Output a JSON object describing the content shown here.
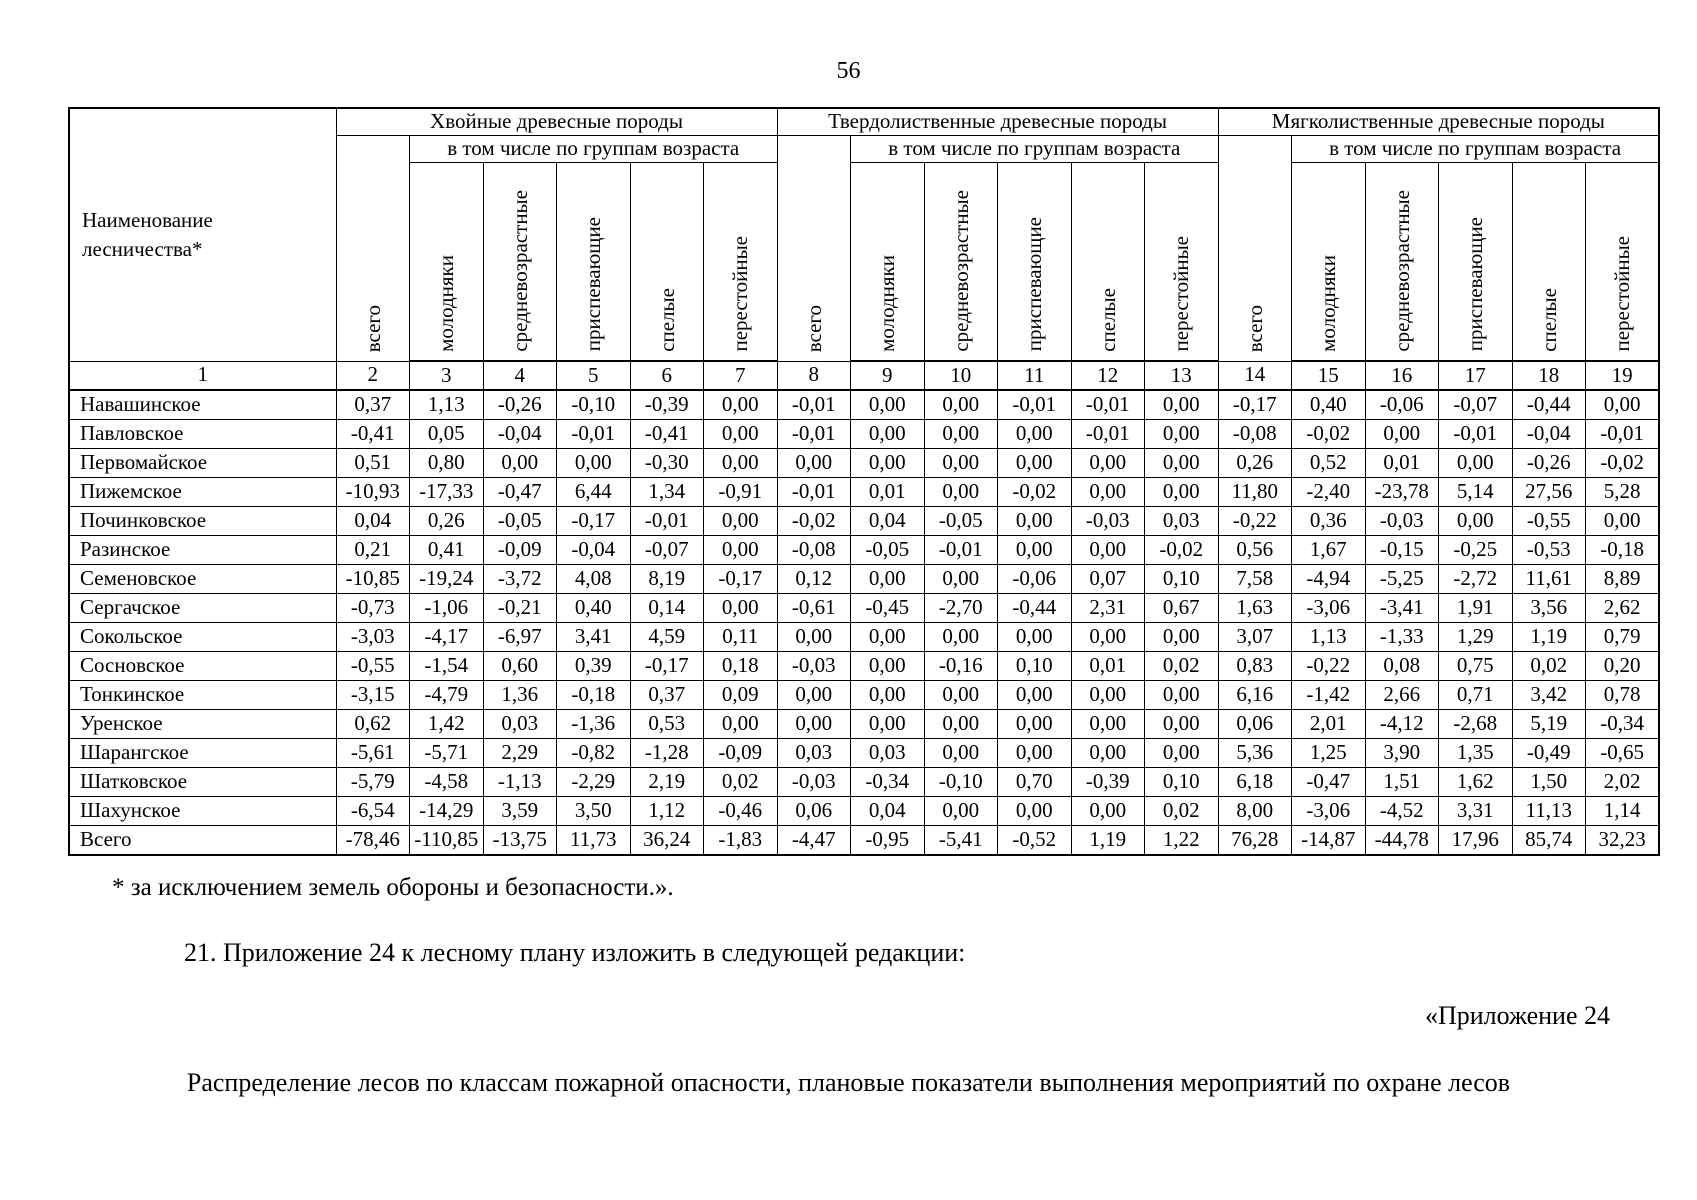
{
  "page": {
    "number": "56",
    "footnote": "* за исключением земель обороны и безопасности.».",
    "paragraph": "21. Приложение 24 к лесному плану изложить в следующей редакции:",
    "appendix_label": "«Приложение 24",
    "appendix_title": "Распределение лесов по классам пожарной опасности, плановые показатели выполнения мероприятий по охране лесов"
  },
  "table": {
    "name_header": "Наименование лесничества*",
    "groups": [
      "Хвойные древесные породы",
      "Твердолиственные древесные породы",
      "Мягколиственные древесные породы"
    ],
    "subheader": "в том числе по группам возраста",
    "total_label": "всего",
    "age_groups": [
      "молодняки",
      "средневозрастные",
      "приспевающие",
      "спелые",
      "перестойные"
    ],
    "column_numbers": [
      "1",
      "2",
      "3",
      "4",
      "5",
      "6",
      "7",
      "8",
      "9",
      "10",
      "11",
      "12",
      "13",
      "14",
      "15",
      "16",
      "17",
      "18",
      "19"
    ],
    "rows": [
      {
        "name": "Навашинское",
        "values": [
          "0,37",
          "1,13",
          "-0,26",
          "-0,10",
          "-0,39",
          "0,00",
          "-0,01",
          "0,00",
          "0,00",
          "-0,01",
          "-0,01",
          "0,00",
          "-0,17",
          "0,40",
          "-0,06",
          "-0,07",
          "-0,44",
          "0,00"
        ]
      },
      {
        "name": "Павловское",
        "values": [
          "-0,41",
          "0,05",
          "-0,04",
          "-0,01",
          "-0,41",
          "0,00",
          "-0,01",
          "0,00",
          "0,00",
          "0,00",
          "-0,01",
          "0,00",
          "-0,08",
          "-0,02",
          "0,00",
          "-0,01",
          "-0,04",
          "-0,01"
        ]
      },
      {
        "name": "Первомайское",
        "values": [
          "0,51",
          "0,80",
          "0,00",
          "0,00",
          "-0,30",
          "0,00",
          "0,00",
          "0,00",
          "0,00",
          "0,00",
          "0,00",
          "0,00",
          "0,26",
          "0,52",
          "0,01",
          "0,00",
          "-0,26",
          "-0,02"
        ]
      },
      {
        "name": "Пижемское",
        "values": [
          "-10,93",
          "-17,33",
          "-0,47",
          "6,44",
          "1,34",
          "-0,91",
          "-0,01",
          "0,01",
          "0,00",
          "-0,02",
          "0,00",
          "0,00",
          "11,80",
          "-2,40",
          "-23,78",
          "5,14",
          "27,56",
          "5,28"
        ]
      },
      {
        "name": "Починковское",
        "values": [
          "0,04",
          "0,26",
          "-0,05",
          "-0,17",
          "-0,01",
          "0,00",
          "-0,02",
          "0,04",
          "-0,05",
          "0,00",
          "-0,03",
          "0,03",
          "-0,22",
          "0,36",
          "-0,03",
          "0,00",
          "-0,55",
          "0,00"
        ]
      },
      {
        "name": "Разинское",
        "values": [
          "0,21",
          "0,41",
          "-0,09",
          "-0,04",
          "-0,07",
          "0,00",
          "-0,08",
          "-0,05",
          "-0,01",
          "0,00",
          "0,00",
          "-0,02",
          "0,56",
          "1,67",
          "-0,15",
          "-0,25",
          "-0,53",
          "-0,18"
        ]
      },
      {
        "name": "Семеновское",
        "values": [
          "-10,85",
          "-19,24",
          "-3,72",
          "4,08",
          "8,19",
          "-0,17",
          "0,12",
          "0,00",
          "0,00",
          "-0,06",
          "0,07",
          "0,10",
          "7,58",
          "-4,94",
          "-5,25",
          "-2,72",
          "11,61",
          "8,89"
        ]
      },
      {
        "name": "Сергачское",
        "values": [
          "-0,73",
          "-1,06",
          "-0,21",
          "0,40",
          "0,14",
          "0,00",
          "-0,61",
          "-0,45",
          "-2,70",
          "-0,44",
          "2,31",
          "0,67",
          "1,63",
          "-3,06",
          "-3,41",
          "1,91",
          "3,56",
          "2,62"
        ]
      },
      {
        "name": "Сокольское",
        "values": [
          "-3,03",
          "-4,17",
          "-6,97",
          "3,41",
          "4,59",
          "0,11",
          "0,00",
          "0,00",
          "0,00",
          "0,00",
          "0,00",
          "0,00",
          "3,07",
          "1,13",
          "-1,33",
          "1,29",
          "1,19",
          "0,79"
        ]
      },
      {
        "name": "Сосновское",
        "values": [
          "-0,55",
          "-1,54",
          "0,60",
          "0,39",
          "-0,17",
          "0,18",
          "-0,03",
          "0,00",
          "-0,16",
          "0,10",
          "0,01",
          "0,02",
          "0,83",
          "-0,22",
          "0,08",
          "0,75",
          "0,02",
          "0,20"
        ]
      },
      {
        "name": "Тонкинское",
        "values": [
          "-3,15",
          "-4,79",
          "1,36",
          "-0,18",
          "0,37",
          "0,09",
          "0,00",
          "0,00",
          "0,00",
          "0,00",
          "0,00",
          "0,00",
          "6,16",
          "-1,42",
          "2,66",
          "0,71",
          "3,42",
          "0,78"
        ]
      },
      {
        "name": "Уренское",
        "values": [
          "0,62",
          "1,42",
          "0,03",
          "-1,36",
          "0,53",
          "0,00",
          "0,00",
          "0,00",
          "0,00",
          "0,00",
          "0,00",
          "0,00",
          "0,06",
          "2,01",
          "-4,12",
          "-2,68",
          "5,19",
          "-0,34"
        ]
      },
      {
        "name": "Шарангское",
        "values": [
          "-5,61",
          "-5,71",
          "2,29",
          "-0,82",
          "-1,28",
          "-0,09",
          "0,03",
          "0,03",
          "0,00",
          "0,00",
          "0,00",
          "0,00",
          "5,36",
          "1,25",
          "3,90",
          "1,35",
          "-0,49",
          "-0,65"
        ]
      },
      {
        "name": "Шатковское",
        "values": [
          "-5,79",
          "-4,58",
          "-1,13",
          "-2,29",
          "2,19",
          "0,02",
          "-0,03",
          "-0,34",
          "-0,10",
          "0,70",
          "-0,39",
          "0,10",
          "6,18",
          "-0,47",
          "1,51",
          "1,62",
          "1,50",
          "2,02"
        ]
      },
      {
        "name": "Шахунское",
        "values": [
          "-6,54",
          "-14,29",
          "3,59",
          "3,50",
          "1,12",
          "-0,46",
          "0,06",
          "0,04",
          "0,00",
          "0,00",
          "0,00",
          "0,02",
          "8,00",
          "-3,06",
          "-4,52",
          "3,31",
          "11,13",
          "1,14"
        ]
      },
      {
        "name": "Всего",
        "values": [
          "-78,46",
          "-110,85",
          "-13,75",
          "11,73",
          "36,24",
          "-1,83",
          "-4,47",
          "-0,95",
          "-5,41",
          "-0,52",
          "1,19",
          "1,22",
          "76,28",
          "-14,87",
          "-44,78",
          "17,96",
          "85,74",
          "32,23"
        ]
      }
    ]
  }
}
